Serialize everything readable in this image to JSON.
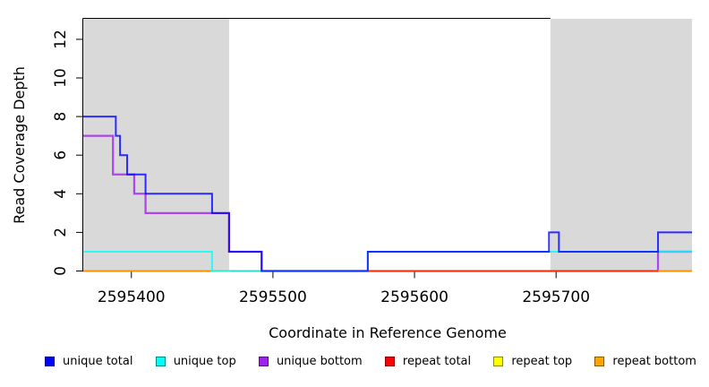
{
  "chart_data": {
    "type": "line",
    "subtype": "step-function-coverage-plot",
    "xlabel": "Coordinate in Reference Genome",
    "ylabel": "Read Coverage Depth",
    "x_domain": [
      2595366,
      2595796
    ],
    "y_domain": [
      0,
      13
    ],
    "xticks": [
      2595400,
      2595500,
      2595600,
      2595700
    ],
    "yticks": [
      0,
      2,
      4,
      6,
      8,
      10,
      12
    ],
    "grid": "off",
    "shade_color": "#D9D9D9",
    "shaded_regions": [
      {
        "x0": 2595366,
        "x1": 2595469
      },
      {
        "x0": 2595696,
        "x1": 2595796
      }
    ],
    "series": [
      {
        "name": "unique bottom",
        "color": "#A020F0",
        "line_width": 2.25,
        "steps": [
          [
            2595366,
            7
          ],
          [
            2595387,
            5
          ],
          [
            2595402,
            4
          ],
          [
            2595410,
            3
          ],
          [
            2595469,
            1
          ],
          [
            2595492,
            0
          ],
          [
            2595772,
            1
          ]
        ]
      },
      {
        "name": "repeat top",
        "color": "#FFFF00",
        "line_width": 1.5,
        "steps": [
          [
            2595366,
            0
          ]
        ]
      },
      {
        "name": "repeat total",
        "color": "#FF0000",
        "line_width": 1.5,
        "steps": [
          [
            2595366,
            0
          ]
        ]
      },
      {
        "name": "repeat bottom",
        "color": "#FFA500",
        "line_width": 2,
        "segments": [
          {
            "from": 2595366,
            "to": 2595470,
            "value": 0
          },
          {
            "from": 2595772,
            "to": 2595796,
            "value": 0
          }
        ]
      },
      {
        "name": "unique top",
        "color": "#00FFFF",
        "line_width": 2,
        "steps": [
          [
            2595366,
            1
          ],
          [
            2595457,
            0
          ],
          [
            2595567,
            1
          ]
        ]
      },
      {
        "name": "unique total",
        "color": "#0000FF",
        "line_width": 2,
        "steps": [
          [
            2595366,
            8
          ],
          [
            2595389,
            7
          ],
          [
            2595392,
            6
          ],
          [
            2595397,
            5
          ],
          [
            2595410,
            4
          ],
          [
            2595457,
            3
          ],
          [
            2595469,
            1
          ],
          [
            2595492,
            0
          ],
          [
            2595567,
            1
          ],
          [
            2595695,
            2
          ],
          [
            2595702,
            1
          ],
          [
            2595772,
            2
          ]
        ]
      }
    ],
    "legend_position": "bottom"
  },
  "legend": {
    "items": [
      {
        "label": "unique total",
        "color": "#0000FF"
      },
      {
        "label": "unique top",
        "color": "#00FFFF"
      },
      {
        "label": "unique bottom",
        "color": "#A020F0"
      },
      {
        "label": "repeat total",
        "color": "#FF0000"
      },
      {
        "label": "repeat top",
        "color": "#FFFF00"
      },
      {
        "label": "repeat bottom",
        "color": "#FFA500"
      }
    ]
  }
}
